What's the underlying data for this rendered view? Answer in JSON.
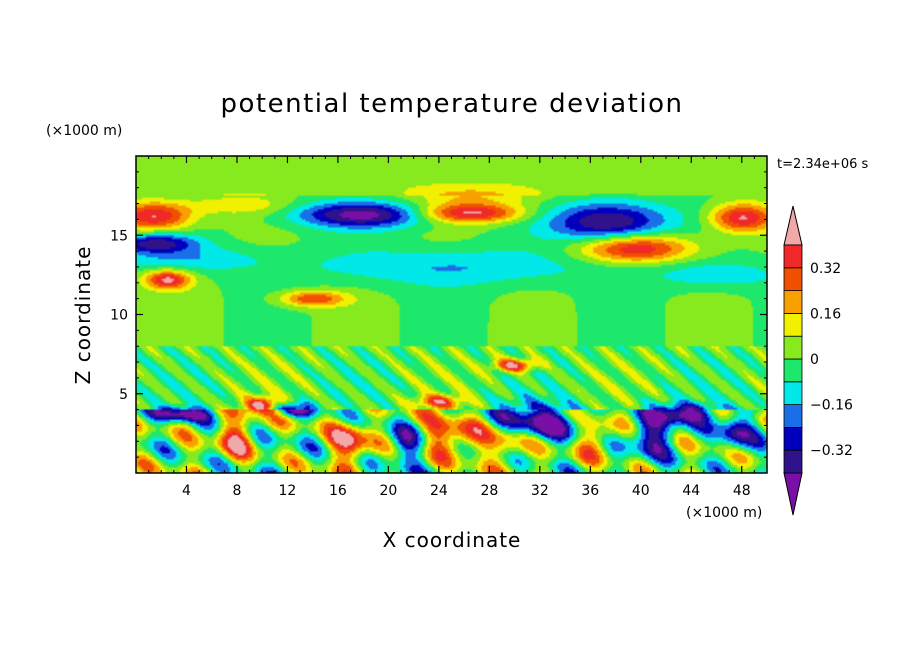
{
  "chart_data": {
    "type": "heatmap",
    "title": "potential temperature deviation",
    "xlabel": "X coordinate",
    "ylabel": "Z coordinate",
    "x_unit_label": "(×1000 m)",
    "y_unit_label": "(×1000 m)",
    "time_label": "t=2.34e+06 s",
    "xlim": [
      0,
      50
    ],
    "ylim": [
      0,
      20
    ],
    "x_ticks": [
      4,
      8,
      12,
      16,
      20,
      24,
      28,
      32,
      36,
      40,
      44,
      48
    ],
    "y_ticks": [
      5,
      10,
      15
    ],
    "colorbar": {
      "levels": [
        -0.4,
        -0.32,
        -0.24,
        -0.16,
        -0.08,
        0,
        0.08,
        0.16,
        0.24,
        0.32,
        0.4
      ],
      "tick_labels": [
        "0.32",
        "0.16",
        "0",
        "−0.16",
        "−0.32"
      ],
      "tick_values": [
        0.32,
        0.16,
        0,
        -0.16,
        -0.32
      ],
      "colors": [
        "#7a0fa8",
        "#30138a",
        "#0000bc",
        "#1a6ee8",
        "#00e8e8",
        "#1ee86c",
        "#86ea1e",
        "#f0f000",
        "#f8a000",
        "#f05000",
        "#f02828",
        "#f2a8a8"
      ]
    },
    "features": [
      {
        "x": 18,
        "z": 16.3,
        "sx": 5.5,
        "sz": 0.8,
        "v": -0.42
      },
      {
        "x": 37.5,
        "z": 15.8,
        "sx": 4.5,
        "sz": 1.3,
        "v": -0.44
      },
      {
        "x": 26.5,
        "z": 16.4,
        "sx": 4.2,
        "sz": 0.6,
        "v": 0.42
      },
      {
        "x": 39.5,
        "z": 14.2,
        "sx": 4.5,
        "sz": 0.9,
        "v": 0.43
      },
      {
        "x": 1.5,
        "z": 16.2,
        "sx": 3,
        "sz": 0.9,
        "v": 0.42
      },
      {
        "x": 48,
        "z": 16.1,
        "sx": 2.5,
        "sz": 0.9,
        "v": 0.42
      },
      {
        "x": 1.5,
        "z": 14.5,
        "sx": 3.2,
        "sz": 0.6,
        "v": -0.36
      },
      {
        "x": 2.5,
        "z": 12.2,
        "sx": 1.8,
        "sz": 0.6,
        "v": 0.42
      },
      {
        "x": 14,
        "z": 11,
        "sx": 2.6,
        "sz": 0.5,
        "v": 0.32
      },
      {
        "x": 8,
        "z": 16.9,
        "sx": 4,
        "sz": 0.6,
        "v": 0.14
      },
      {
        "x": 27,
        "z": 17.5,
        "sx": 6,
        "sz": 0.7,
        "v": 0.14
      },
      {
        "x": 25,
        "z": 13,
        "sx": 12,
        "sz": 1.2,
        "v": -0.16
      },
      {
        "x": 4,
        "z": 13.5,
        "sx": 6,
        "sz": 0.8,
        "v": -0.14
      },
      {
        "x": 46,
        "z": 12.5,
        "sx": 5,
        "sz": 0.9,
        "v": -0.14
      },
      {
        "x": 30,
        "z": 6.8,
        "sx": 1.6,
        "sz": 0.4,
        "v": 0.42
      },
      {
        "x": 10,
        "z": 4.3,
        "sx": 1.2,
        "sz": 0.5,
        "v": 0.42
      },
      {
        "x": 24,
        "z": 4.5,
        "sx": 1.8,
        "sz": 0.4,
        "v": 0.32
      },
      {
        "x": 3.5,
        "z": 3.7,
        "sx": 2.2,
        "sz": 0.45,
        "v": -0.4
      },
      {
        "x": 12.5,
        "z": 4,
        "sx": 1.6,
        "sz": 0.45,
        "v": -0.36
      },
      {
        "x": 32,
        "z": 3.2,
        "sx": 3.5,
        "sz": 1.2,
        "v": -0.38
      },
      {
        "x": 43.5,
        "z": 3.8,
        "sx": 2.2,
        "sz": 0.6,
        "v": -0.38
      },
      {
        "x": 25,
        "z": 2.2,
        "sx": 3,
        "sz": 1.3,
        "v": 0.34
      },
      {
        "x": 17,
        "z": 2,
        "sx": 1.6,
        "sz": 1.4,
        "v": 0.36
      },
      {
        "x": 8,
        "z": 2.2,
        "sx": 1.5,
        "sz": 1.4,
        "v": 0.32
      },
      {
        "x": 41,
        "z": 2.5,
        "sx": 2,
        "sz": 1.3,
        "v": -0.36
      },
      {
        "x": 21.5,
        "z": 1.8,
        "sx": 1.6,
        "sz": 1.2,
        "v": -0.34
      },
      {
        "x": 29.5,
        "z": 1.8,
        "sx": 1.4,
        "sz": 1.2,
        "v": 0.22
      },
      {
        "x": 36.5,
        "z": 2.2,
        "sx": 1.5,
        "sz": 1.2,
        "v": 0.28
      },
      {
        "x": 47.5,
        "z": 2.5,
        "sx": 1.3,
        "sz": 1.3,
        "v": -0.34
      }
    ]
  }
}
